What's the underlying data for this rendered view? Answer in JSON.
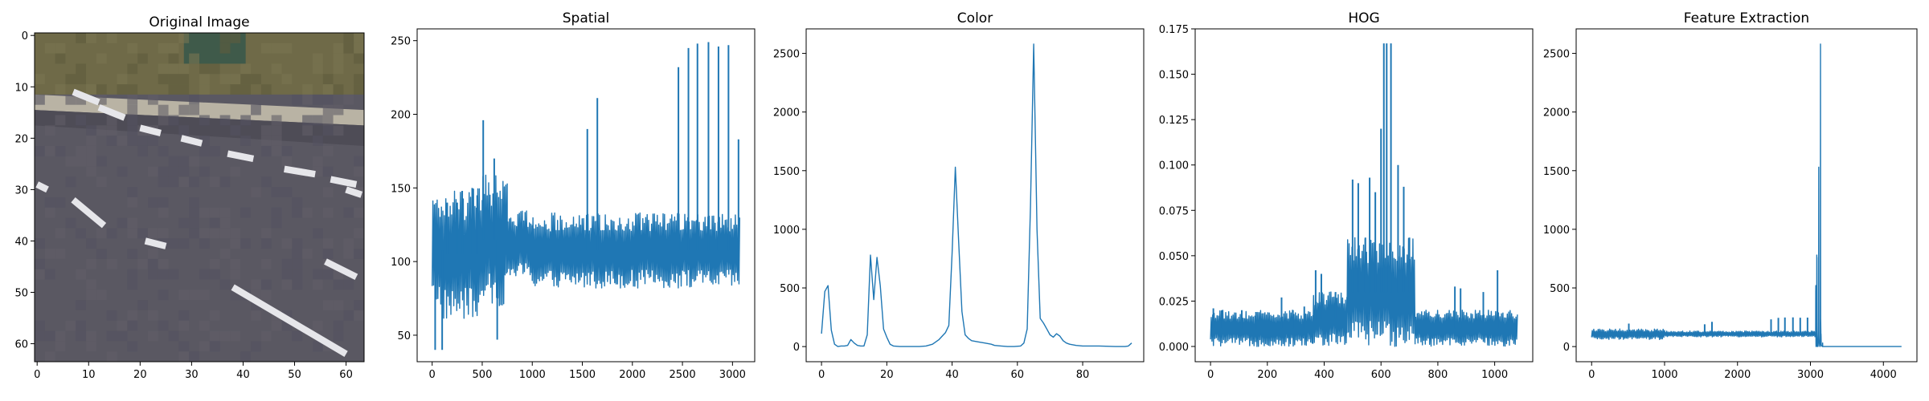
{
  "figure": {
    "line_color": "#1f77b4"
  },
  "image_panel": {
    "title": "Original Image",
    "x_ticks": [
      0,
      10,
      20,
      30,
      40,
      50,
      60
    ],
    "y_ticks": [
      0,
      10,
      20,
      30,
      40,
      50,
      60
    ],
    "xlim": [
      -0.5,
      63.5
    ],
    "ylim": [
      63.5,
      -0.5
    ],
    "palette": {
      "road": "#5a5862",
      "road_dark": "#4e4c56",
      "barrier": "#b9b3a4",
      "vegetation": "#6f6a48",
      "sign": "#3f5a4a",
      "lane_marking": "#e6e6ea",
      "shoulder": "#8a8070"
    }
  },
  "chart_data": [
    {
      "type": "line",
      "title": "Spatial",
      "xlim": [
        -150,
        3222
      ],
      "ylim": [
        32,
        258
      ],
      "x_ticks": [
        0,
        500,
        1000,
        1500,
        2000,
        2500,
        3000
      ],
      "y_ticks": [
        50,
        100,
        150,
        200,
        250
      ],
      "x_max": 3072,
      "segments": [
        {
          "x_start": 0,
          "x_end": 100,
          "low": 70,
          "high": 145
        },
        {
          "x_start": 100,
          "x_end": 500,
          "low": 60,
          "high": 150
        },
        {
          "x_start": 500,
          "x_end": 750,
          "low": 70,
          "high": 160
        },
        {
          "x_start": 750,
          "x_end": 1000,
          "low": 88,
          "high": 135
        },
        {
          "x_start": 1000,
          "x_end": 3072,
          "low": 82,
          "high": 133
        }
      ],
      "spikes": [
        {
          "x": 30,
          "y": 40
        },
        {
          "x": 100,
          "y": 40
        },
        {
          "x": 150,
          "y": 140
        },
        {
          "x": 250,
          "y": 140
        },
        {
          "x": 300,
          "y": 148
        },
        {
          "x": 400,
          "y": 150
        },
        {
          "x": 450,
          "y": 145
        },
        {
          "x": 510,
          "y": 196
        },
        {
          "x": 620,
          "y": 170
        },
        {
          "x": 650,
          "y": 47
        },
        {
          "x": 1550,
          "y": 190
        },
        {
          "x": 1650,
          "y": 211
        },
        {
          "x": 2460,
          "y": 232
        },
        {
          "x": 2560,
          "y": 245
        },
        {
          "x": 2650,
          "y": 248
        },
        {
          "x": 2760,
          "y": 249
        },
        {
          "x": 2860,
          "y": 246
        },
        {
          "x": 2960,
          "y": 247
        },
        {
          "x": 3060,
          "y": 183
        }
      ]
    },
    {
      "type": "line",
      "title": "Color",
      "xlim": [
        -4.7,
        98.7
      ],
      "ylim": [
        -129,
        2709
      ],
      "x_ticks": [
        0,
        20,
        40,
        60,
        80
      ],
      "y_ticks": [
        0,
        500,
        1000,
        1500,
        2000,
        2500
      ],
      "x": [
        0,
        1,
        2,
        3,
        4,
        5,
        6,
        7,
        8,
        9,
        10,
        11,
        12,
        13,
        14,
        15,
        16,
        17,
        18,
        19,
        20,
        21,
        22,
        24,
        26,
        28,
        30,
        32,
        34,
        36,
        38,
        39,
        40,
        41,
        42,
        43,
        44,
        45,
        46,
        48,
        50,
        52,
        53,
        55,
        57,
        59,
        61,
        62,
        63,
        64,
        65,
        66,
        67,
        68,
        69,
        70,
        71,
        72,
        73,
        74,
        75,
        76,
        78,
        80,
        85,
        90,
        93,
        94,
        95
      ],
      "y": [
        110,
        470,
        520,
        140,
        20,
        0,
        5,
        5,
        10,
        60,
        30,
        10,
        5,
        5,
        100,
        780,
        400,
        760,
        520,
        150,
        80,
        20,
        5,
        0,
        0,
        0,
        0,
        5,
        20,
        60,
        120,
        180,
        800,
        1530,
        900,
        300,
        100,
        70,
        50,
        40,
        30,
        20,
        10,
        5,
        0,
        0,
        5,
        30,
        150,
        1200,
        2580,
        1000,
        240,
        200,
        150,
        100,
        80,
        110,
        90,
        50,
        30,
        20,
        10,
        5,
        5,
        0,
        0,
        5,
        30
      ]
    },
    {
      "type": "line",
      "title": "HOG",
      "xlim": [
        -54,
        1134
      ],
      "ylim": [
        -0.0084,
        0.175
      ],
      "x_ticks": [
        0,
        200,
        400,
        600,
        800,
        1000
      ],
      "y_ticks": [
        "0.000",
        "0.025",
        "0.050",
        "0.075",
        "0.100",
        "0.125",
        "0.150",
        "0.175"
      ],
      "x_max": 1080,
      "segments": [
        {
          "x_start": 0,
          "x_end": 360,
          "low": 0.0,
          "high": 0.02
        },
        {
          "x_start": 360,
          "x_end": 480,
          "low": 0.0,
          "high": 0.03
        },
        {
          "x_start": 480,
          "x_end": 720,
          "low": 0.0,
          "high": 0.06
        },
        {
          "x_start": 720,
          "x_end": 1080,
          "low": 0.0,
          "high": 0.02
        }
      ],
      "spikes": [
        {
          "x": 10,
          "y": 0.021
        },
        {
          "x": 40,
          "y": 0.02
        },
        {
          "x": 110,
          "y": 0.02
        },
        {
          "x": 160,
          "y": 0.019
        },
        {
          "x": 250,
          "y": 0.027
        },
        {
          "x": 290,
          "y": 0.02
        },
        {
          "x": 330,
          "y": 0.022
        },
        {
          "x": 370,
          "y": 0.042
        },
        {
          "x": 390,
          "y": 0.04
        },
        {
          "x": 440,
          "y": 0.03
        },
        {
          "x": 500,
          "y": 0.092
        },
        {
          "x": 520,
          "y": 0.09
        },
        {
          "x": 545,
          "y": 0.06
        },
        {
          "x": 560,
          "y": 0.093
        },
        {
          "x": 580,
          "y": 0.085
        },
        {
          "x": 600,
          "y": 0.12
        },
        {
          "x": 610,
          "y": 0.167
        },
        {
          "x": 620,
          "y": 0.167
        },
        {
          "x": 635,
          "y": 0.167
        },
        {
          "x": 660,
          "y": 0.1
        },
        {
          "x": 680,
          "y": 0.088
        },
        {
          "x": 700,
          "y": 0.06
        },
        {
          "x": 860,
          "y": 0.033
        },
        {
          "x": 880,
          "y": 0.032
        },
        {
          "x": 960,
          "y": 0.03
        },
        {
          "x": 1010,
          "y": 0.042
        },
        {
          "x": 1075,
          "y": 0.015
        }
      ]
    },
    {
      "type": "line",
      "title": "Feature Extraction",
      "xlim": [
        -212,
        4460
      ],
      "ylim": [
        -129,
        2709
      ],
      "x_ticks": [
        0,
        1000,
        2000,
        3000,
        4000
      ],
      "y_ticks": [
        0,
        500,
        1000,
        1500,
        2000,
        2500
      ],
      "x_max": 4248,
      "segments": [
        {
          "x_start": 0,
          "x_end": 1000,
          "low": 60,
          "high": 150
        },
        {
          "x_start": 1000,
          "x_end": 3072,
          "low": 82,
          "high": 133
        },
        {
          "x_start": 3168,
          "x_end": 4248,
          "low": 0,
          "high": 0
        }
      ],
      "spikes": [
        {
          "x": 510,
          "y": 196
        },
        {
          "x": 1550,
          "y": 190
        },
        {
          "x": 1650,
          "y": 211
        },
        {
          "x": 2460,
          "y": 232
        },
        {
          "x": 2560,
          "y": 245
        },
        {
          "x": 2650,
          "y": 248
        },
        {
          "x": 2760,
          "y": 249
        },
        {
          "x": 2860,
          "y": 246
        },
        {
          "x": 2960,
          "y": 247
        }
      ],
      "color_block": {
        "x_start": 3072,
        "x_end": 3168,
        "note_ref": "Color"
      }
    }
  ]
}
